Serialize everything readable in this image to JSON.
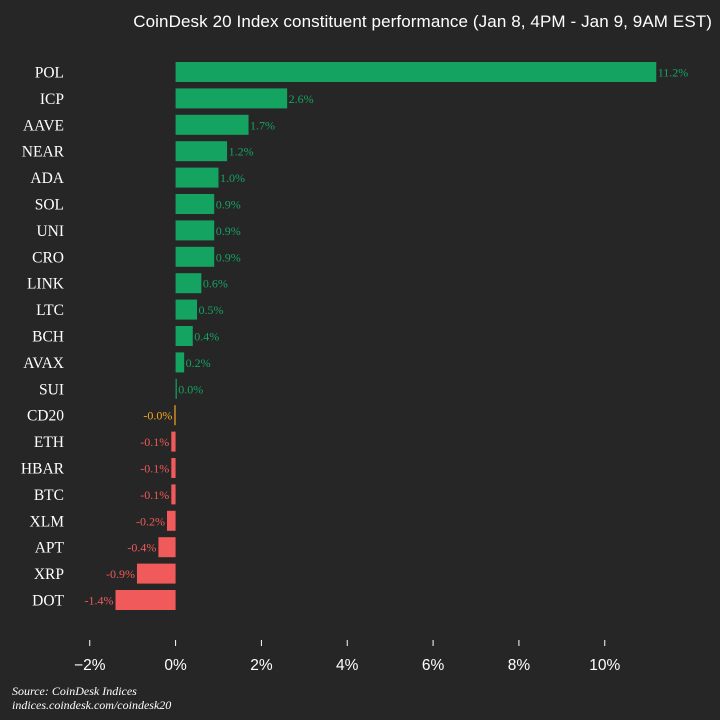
{
  "title": "CoinDesk 20 Index constituent performance (Jan 8, 4PM - Jan 9, 9AM EST)",
  "source": {
    "line1": "Source: CoinDesk Indices",
    "line2": "indices.coindesk.com/coindesk20"
  },
  "colors": {
    "positive": "#15a362",
    "negative": "#f05a5a",
    "index": "#f5a623",
    "background": "#262626",
    "text": "#ffffff"
  },
  "chart_data": {
    "type": "bar",
    "orientation": "horizontal",
    "categories": [
      "POL",
      "ICP",
      "AAVE",
      "NEAR",
      "ADA",
      "SOL",
      "UNI",
      "CRO",
      "LINK",
      "LTC",
      "BCH",
      "AVAX",
      "SUI",
      "CD20",
      "ETH",
      "HBAR",
      "BTC",
      "XLM",
      "APT",
      "XRP",
      "DOT"
    ],
    "values": [
      11.2,
      2.6,
      1.7,
      1.2,
      1.0,
      0.9,
      0.9,
      0.9,
      0.6,
      0.5,
      0.4,
      0.2,
      0.0,
      -0.0,
      -0.1,
      -0.1,
      -0.1,
      -0.2,
      -0.4,
      -0.9,
      -1.4
    ],
    "value_labels": [
      "11.2%",
      "2.6%",
      "1.7%",
      "1.2%",
      "1.0%",
      "0.9%",
      "0.9%",
      "0.9%",
      "0.6%",
      "0.5%",
      "0.4%",
      "0.2%",
      "0.0%",
      "-0.0%",
      "-0.1%",
      "-0.1%",
      "-0.1%",
      "-0.2%",
      "-0.4%",
      "-0.9%",
      "-1.4%"
    ],
    "highlight_category": "CD20",
    "xlim": [
      -2.6,
      11.8
    ],
    "xticks": [
      -2,
      0,
      2,
      4,
      6,
      8,
      10
    ],
    "xtick_labels": [
      "−2%",
      "0%",
      "2%",
      "4%",
      "6%",
      "8%",
      "10%"
    ],
    "grid": false
  }
}
